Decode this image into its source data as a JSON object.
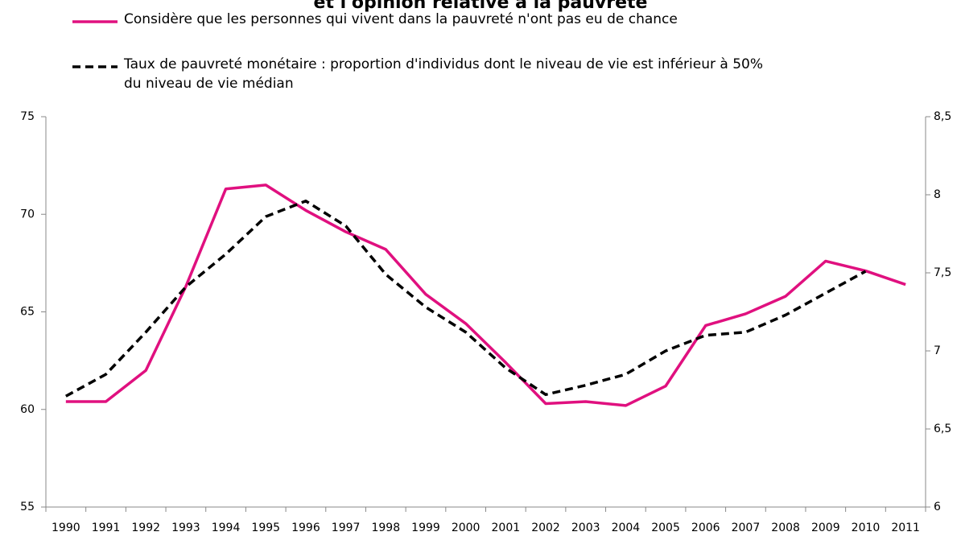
{
  "chart_data": {
    "type": "line",
    "title": "et l'opinion relative à la pauvreté",
    "categories": [
      "1990",
      "1991",
      "1992",
      "1993",
      "1994",
      "1995",
      "1996",
      "1997",
      "1998",
      "1999",
      "2000",
      "2001",
      "2002",
      "2003",
      "2004",
      "2005",
      "2006",
      "2007",
      "2008",
      "2009",
      "2010",
      "2011"
    ],
    "series": [
      {
        "name": "Considère que les personnes qui vivent dans la pauvreté n'ont pas eu de chance",
        "color": "#e0107f",
        "dash": "solid",
        "values": [
          60.4,
          60.4,
          62.0,
          66.3,
          71.3,
          71.5,
          70.2,
          69.1,
          68.2,
          65.9,
          64.4,
          62.4,
          60.3,
          60.4,
          60.2,
          61.2,
          64.3,
          64.9,
          65.8,
          67.6,
          67.1,
          66.4
        ]
      },
      {
        "name": "Taux de pauvreté monétaire : proportion d'individus dont le niveau de vie est inférieur à 50% du niveau de vie médian",
        "color": "#000000",
        "dash": "dashed",
        "axis": "y2",
        "values": [
          6.71,
          6.85,
          7.12,
          7.41,
          7.62,
          7.86,
          7.96,
          7.8,
          7.49,
          7.28,
          7.12,
          6.89,
          6.72,
          6.78,
          6.85,
          7.0,
          7.1,
          7.12,
          7.23,
          7.37,
          7.51,
          null
        ]
      }
    ],
    "ylim": [
      55,
      75
    ],
    "yticks": [
      55,
      60,
      65,
      70,
      75
    ],
    "y2lim": [
      6,
      8.5
    ],
    "y2ticks": [
      6,
      {
        "value": 6.5,
        "label": "6,5"
      },
      7,
      {
        "value": 7.5,
        "label": "7,5"
      },
      8,
      {
        "value": 8.5,
        "label": "8,5"
      }
    ],
    "grid": false,
    "legend": "top"
  }
}
